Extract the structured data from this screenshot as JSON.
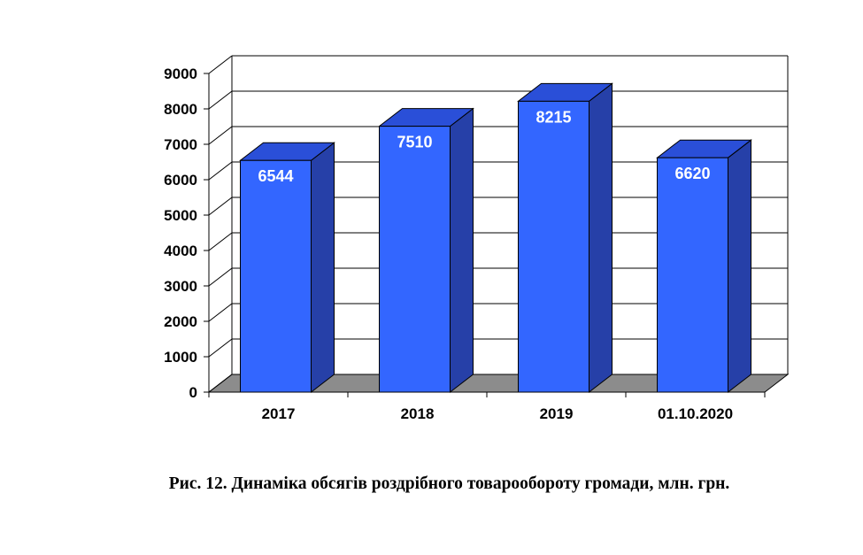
{
  "chart_data": {
    "type": "bar",
    "categories": [
      "2017",
      "2018",
      "2019",
      "01.10.2020"
    ],
    "values": [
      6544,
      7510,
      8215,
      6620
    ],
    "ylim": [
      0,
      9000
    ],
    "yticks": [
      0,
      1000,
      2000,
      3000,
      4000,
      5000,
      6000,
      7000,
      8000,
      9000
    ],
    "grid": true,
    "legend": "none",
    "colors": {
      "bar_front": "#3366ff",
      "bar_side": "#2640a8",
      "bar_top": "#2a4fd8",
      "floor": "#8c8c8c",
      "grid": "#000000"
    }
  },
  "caption": "Рис. 12. Динаміка обсягів роздрібного товарообороту громади, млн. грн."
}
